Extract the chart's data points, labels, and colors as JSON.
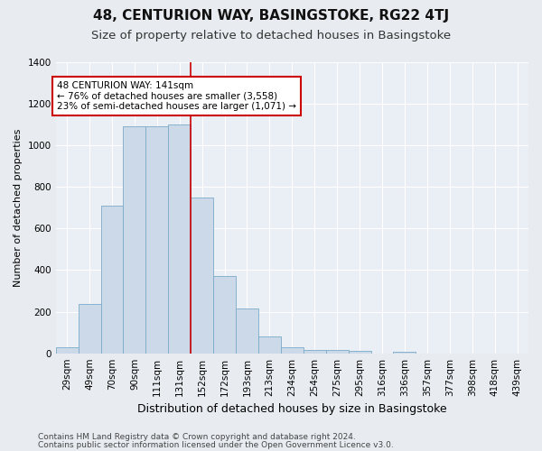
{
  "title": "48, CENTURION WAY, BASINGSTOKE, RG22 4TJ",
  "subtitle": "Size of property relative to detached houses in Basingstoke",
  "xlabel": "Distribution of detached houses by size in Basingstoke",
  "ylabel": "Number of detached properties",
  "footer_line1": "Contains HM Land Registry data © Crown copyright and database right 2024.",
  "footer_line2": "Contains public sector information licensed under the Open Government Licence v3.0.",
  "categories": [
    "29sqm",
    "49sqm",
    "70sqm",
    "90sqm",
    "111sqm",
    "131sqm",
    "152sqm",
    "172sqm",
    "193sqm",
    "213sqm",
    "234sqm",
    "254sqm",
    "275sqm",
    "295sqm",
    "316sqm",
    "336sqm",
    "357sqm",
    "377sqm",
    "398sqm",
    "418sqm",
    "439sqm"
  ],
  "values": [
    28,
    237,
    710,
    1090,
    1090,
    1100,
    750,
    370,
    215,
    80,
    28,
    18,
    18,
    10,
    0,
    8,
    0,
    0,
    0,
    0,
    0
  ],
  "bar_color": "#ccd9e8",
  "bar_edge_color": "#7baac8",
  "vline_x": 5.5,
  "vline_color": "#cc0000",
  "annotation_text": "48 CENTURION WAY: 141sqm\n← 76% of detached houses are smaller (3,558)\n23% of semi-detached houses are larger (1,071) →",
  "annotation_box_color": "#ffffff",
  "annotation_box_edge_color": "#cc0000",
  "ylim": [
    0,
    1400
  ],
  "yticks": [
    0,
    200,
    400,
    600,
    800,
    1000,
    1200,
    1400
  ],
  "bg_color": "#e8ecf0",
  "plot_bg_color": "#eaeff5",
  "title_fontsize": 11,
  "subtitle_fontsize": 9.5,
  "xlabel_fontsize": 9,
  "ylabel_fontsize": 8,
  "tick_fontsize": 7.5,
  "footer_fontsize": 6.5,
  "annot_fontsize": 7.5
}
